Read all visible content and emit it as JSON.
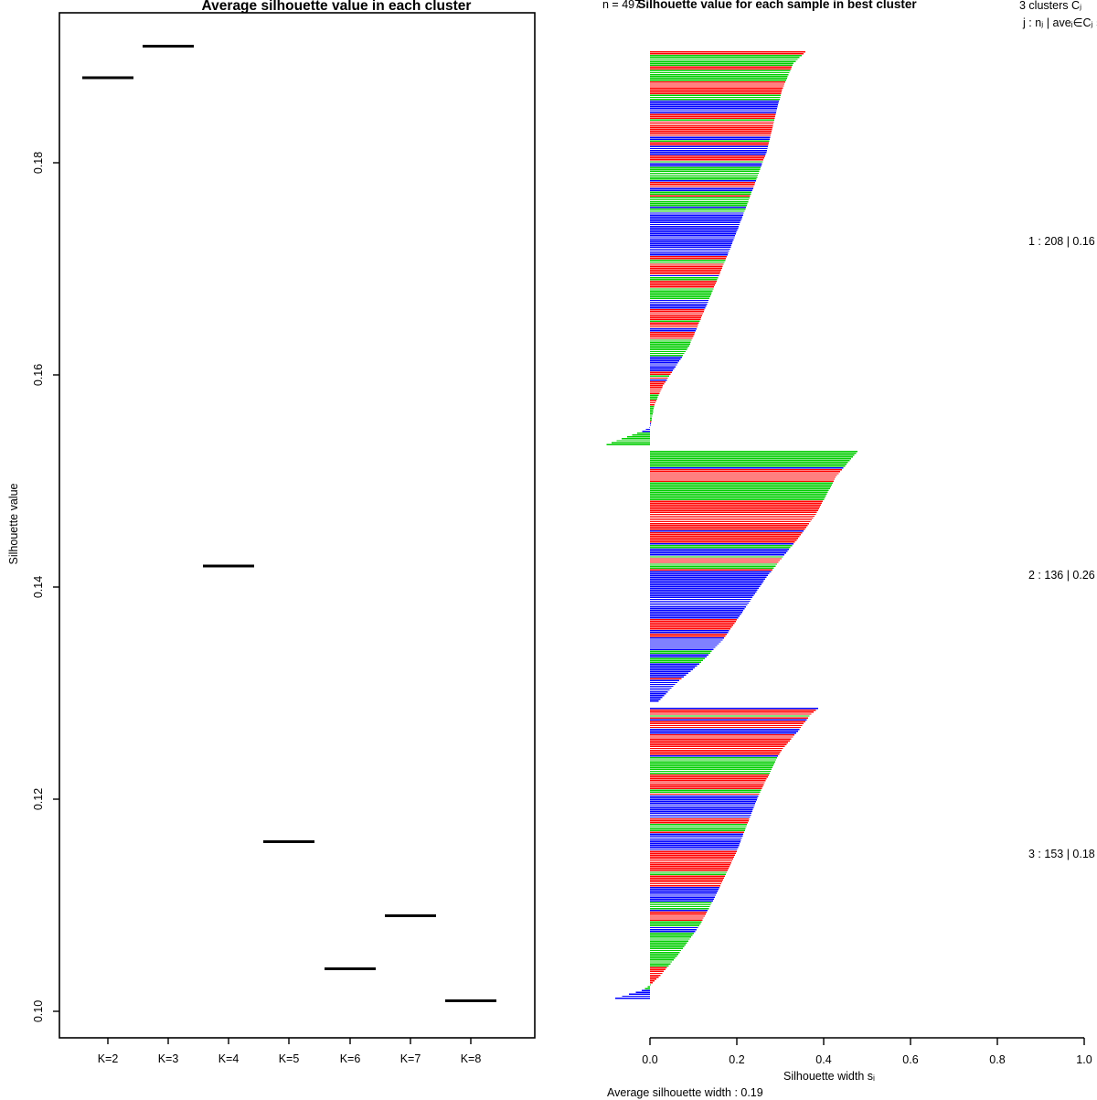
{
  "chart_data": [
    {
      "type": "scatter",
      "marker": "horizontal-dash",
      "title": "Average silhouette value in each cluster",
      "xlabel": "",
      "ylabel": "Silhouette value",
      "categories": [
        "K=2",
        "K=3",
        "K=4",
        "K=5",
        "K=6",
        "K=7",
        "K=8"
      ],
      "values": [
        0.188,
        0.191,
        0.142,
        0.116,
        0.104,
        0.109,
        0.101
      ],
      "y_ticks": [
        0.1,
        0.12,
        0.14,
        0.16,
        0.18
      ],
      "ylim": [
        0.0975,
        0.1945
      ],
      "grid": false,
      "box": true,
      "marker_color": "#000000"
    },
    {
      "type": "bar",
      "orientation": "horizontal",
      "title": "Silhouette value for each sample in best cluster",
      "overlay_text": "n = 497",
      "legend_header": [
        "3 clusters Cⱼ",
        "j :  nⱼ | aveᵢ∈Cⱼ  sᵢ"
      ],
      "xlabel": "Silhouette width sᵢ",
      "x_ticks": [
        0.0,
        0.2,
        0.4,
        0.6,
        0.8,
        1.0
      ],
      "xlim": [
        -0.1,
        1.0
      ],
      "footer": "Average silhouette width :  0.19",
      "palette": [
        "#FF0000",
        "#00CD00",
        "#0000FF"
      ],
      "total_n": 497,
      "clusters": [
        {
          "id": 1,
          "label": "1 :  208 | 0.16",
          "n": 208,
          "avg_width": 0.16,
          "max": 0.36,
          "min": -0.1,
          "color_weights": [
            0.42,
            0.38,
            0.2
          ],
          "seed": 7,
          "profile": [
            [
              0,
              0.358
            ],
            [
              0.03,
              0.33
            ],
            [
              0.1,
              0.303
            ],
            [
              0.25,
              0.27
            ],
            [
              0.4,
              0.22
            ],
            [
              0.5,
              0.185
            ],
            [
              0.62,
              0.14
            ],
            [
              0.75,
              0.09
            ],
            [
              0.85,
              0.03
            ],
            [
              0.9,
              0.01
            ],
            [
              0.955,
              0.001
            ],
            [
              0.965,
              -0.015
            ],
            [
              1,
              -0.1
            ]
          ]
        },
        {
          "id": 2,
          "label": "2 :  136 | 0.26",
          "n": 136,
          "avg_width": 0.26,
          "max": 0.48,
          "min": 0.02,
          "color_weights": [
            0.33,
            0.25,
            0.42
          ],
          "seed": 13,
          "profile": [
            [
              0,
              0.478
            ],
            [
              0.1,
              0.429
            ],
            [
              0.25,
              0.383
            ],
            [
              0.35,
              0.34
            ],
            [
              0.5,
              0.27
            ],
            [
              0.65,
              0.21
            ],
            [
              0.75,
              0.17
            ],
            [
              0.85,
              0.115
            ],
            [
              0.93,
              0.06
            ],
            [
              1,
              0.02
            ]
          ]
        },
        {
          "id": 3,
          "label": "3 :  153 | 0.18",
          "n": 153,
          "avg_width": 0.18,
          "max": 0.39,
          "min": -0.08,
          "color_weights": [
            0.34,
            0.31,
            0.35
          ],
          "seed": 5,
          "profile": [
            [
              0,
              0.387
            ],
            [
              0.02,
              0.371
            ],
            [
              0.08,
              0.34
            ],
            [
              0.15,
              0.3
            ],
            [
              0.3,
              0.25
            ],
            [
              0.5,
              0.198
            ],
            [
              0.65,
              0.15
            ],
            [
              0.75,
              0.114
            ],
            [
              0.85,
              0.065
            ],
            [
              0.92,
              0.025
            ],
            [
              0.955,
              0.001
            ],
            [
              0.975,
              -0.02
            ],
            [
              1,
              -0.08
            ]
          ]
        }
      ]
    }
  ]
}
